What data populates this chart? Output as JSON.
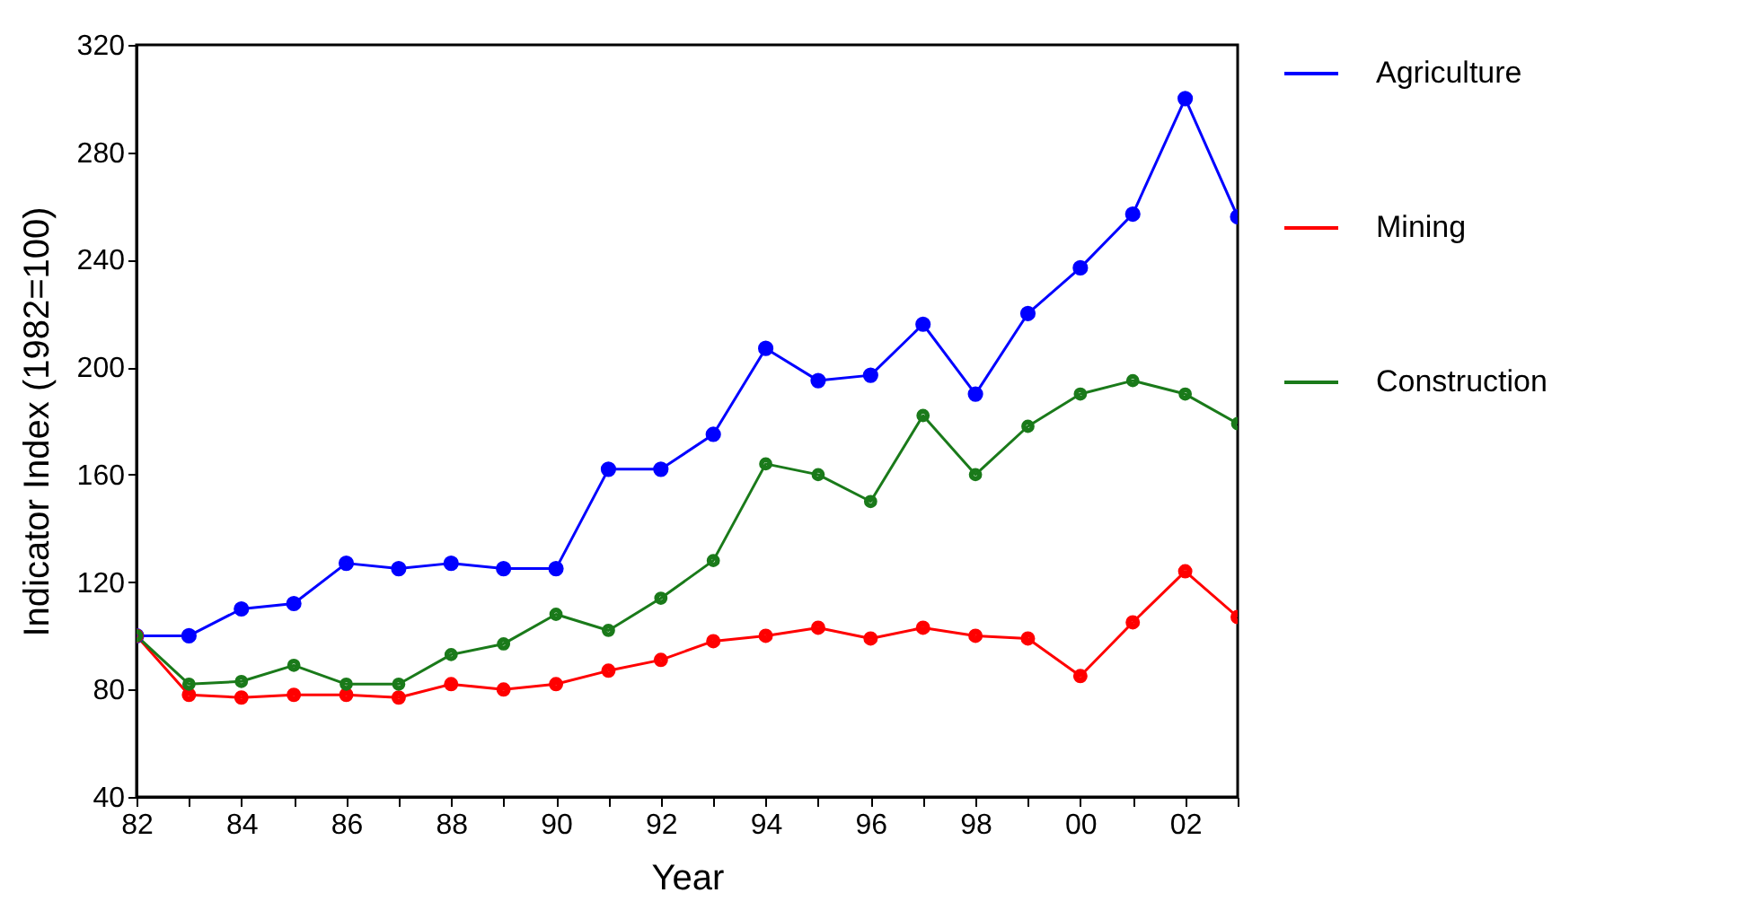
{
  "chart_data": {
    "type": "line",
    "xlabel": "Year",
    "ylabel": "Indicator Index (1982=100)",
    "x": [
      1982,
      1983,
      1984,
      1985,
      1986,
      1987,
      1988,
      1989,
      1990,
      1991,
      1992,
      1993,
      1994,
      1995,
      1996,
      1997,
      1998,
      1999,
      2000,
      2001,
      2002,
      2003
    ],
    "series": [
      {
        "name": "Agriculture",
        "color": "#0000ff",
        "values": [
          100,
          100,
          110,
          112,
          127,
          125,
          127,
          125,
          125,
          162,
          162,
          175,
          207,
          195,
          197,
          216,
          190,
          220,
          237,
          257,
          300,
          256
        ]
      },
      {
        "name": "Mining",
        "color": "#ff0000",
        "values": [
          100,
          78,
          77,
          78,
          78,
          77,
          82,
          80,
          82,
          87,
          91,
          98,
          100,
          103,
          99,
          103,
          100,
          99,
          85,
          105,
          124,
          107
        ]
      },
      {
        "name": "Construction",
        "color": "#1a7a1a",
        "values": [
          100,
          82,
          83,
          89,
          82,
          82,
          93,
          97,
          108,
          102,
          114,
          128,
          164,
          160,
          150,
          182,
          160,
          178,
          190,
          195,
          190,
          179
        ]
      }
    ],
    "xlim": [
      1982,
      2003
    ],
    "xticks": [
      {
        "value": 1982,
        "label": "82"
      },
      {
        "value": 1983,
        "label": null
      },
      {
        "value": 1984,
        "label": "84"
      },
      {
        "value": 1985,
        "label": null
      },
      {
        "value": 1986,
        "label": "86"
      },
      {
        "value": 1987,
        "label": null
      },
      {
        "value": 1988,
        "label": "88"
      },
      {
        "value": 1989,
        "label": null
      },
      {
        "value": 1990,
        "label": "90"
      },
      {
        "value": 1991,
        "label": null
      },
      {
        "value": 1992,
        "label": "92"
      },
      {
        "value": 1993,
        "label": null
      },
      {
        "value": 1994,
        "label": "94"
      },
      {
        "value": 1995,
        "label": null
      },
      {
        "value": 1996,
        "label": "96"
      },
      {
        "value": 1997,
        "label": null
      },
      {
        "value": 1998,
        "label": "98"
      },
      {
        "value": 1999,
        "label": null
      },
      {
        "value": 2000,
        "label": "00"
      },
      {
        "value": 2001,
        "label": null
      },
      {
        "value": 2002,
        "label": "02"
      },
      {
        "value": 2003,
        "label": null
      }
    ],
    "ylim": [
      40,
      320
    ],
    "yticks": [
      40,
      80,
      120,
      160,
      200,
      240,
      280,
      320
    ],
    "grid": false,
    "legend": "right",
    "marker": "circle",
    "line_style": "solid"
  }
}
